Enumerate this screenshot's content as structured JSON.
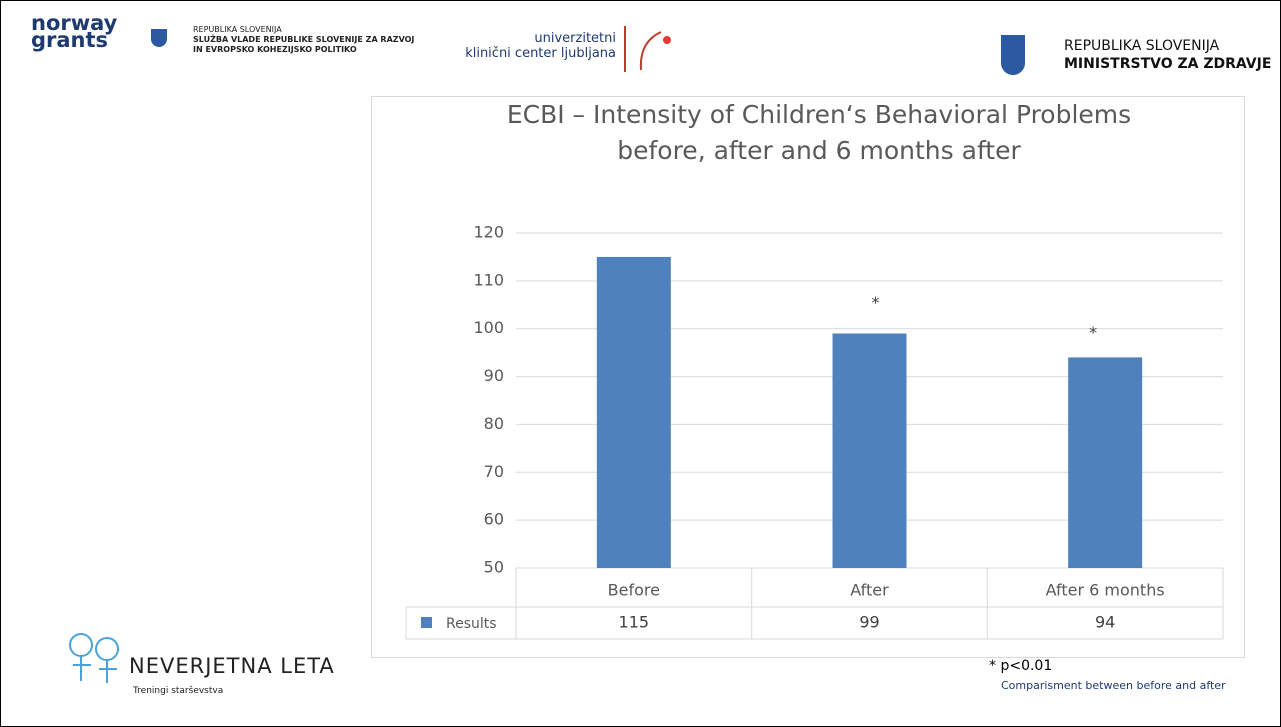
{
  "header": {
    "left_logo": [
      "norway",
      "grants"
    ],
    "gov_text": [
      "REPUBLIKA SLOVENIJA",
      "SLUŽBA VLADE REPUBLIKE SLOVENIJE ZA RAZVOJ",
      "IN EVROPSKO KOHEZIJSKO POLITIKO"
    ],
    "ukc_text": [
      "univerzitetni",
      "klinični center ljubljana"
    ],
    "ministry_text": [
      "REPUBLIKA SLOVENIJA",
      "MINISTRSTVO ZA ZDRAVJE"
    ]
  },
  "footer_logo": {
    "name": "NEVERJETNA LETA",
    "subtitle": "Treningi starševstva"
  },
  "chart_data": {
    "type": "bar",
    "title": [
      "ECBI – Intensity of Children‘s Behavioral Problems",
      "before, after and 6 months after"
    ],
    "categories": [
      "Before",
      "After",
      "After 6 months"
    ],
    "series": [
      {
        "name": "Results",
        "color": "#4f81bd",
        "values": [
          115,
          99,
          94
        ]
      }
    ],
    "bar_annotations": [
      null,
      "*",
      "*"
    ],
    "ylim": [
      50,
      120
    ],
    "yticks": [
      50,
      60,
      70,
      80,
      90,
      100,
      110,
      120
    ],
    "grid": true,
    "footnote": [
      "* p<0.01",
      "Comparisment between before and after"
    ]
  }
}
